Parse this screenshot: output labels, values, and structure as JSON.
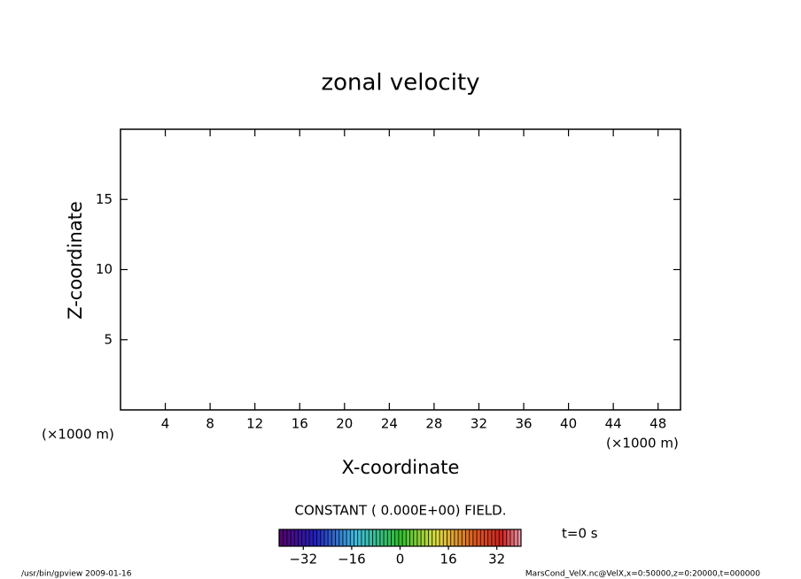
{
  "chart_data": {
    "type": "contour",
    "title": "zonal velocity",
    "xlabel": "X-coordinate",
    "ylabel": "Z-coordinate",
    "xunit_left": "(×1000 m)",
    "xunit_right": "(×1000 m)",
    "xlim": [
      0,
      50
    ],
    "xticks": [
      4,
      8,
      12,
      16,
      20,
      24,
      28,
      32,
      36,
      40,
      44,
      48
    ],
    "ylim": [
      0,
      20
    ],
    "yticks": [
      5,
      10,
      15
    ],
    "field_note": "CONSTANT ( 0.000E+00) FIELD.",
    "time_label": "t=0 s",
    "colorbar_lim": [
      -40,
      40
    ],
    "colorbar_ticks": [
      {
        "value": -32,
        "label": "−32"
      },
      {
        "value": -16,
        "label": "−16"
      },
      0,
      16,
      32
    ],
    "footer_left": "/usr/bin/gpview   2009-01-16",
    "footer_right": "MarsCond_VelX.nc@VelX,x=0:50000,z=0:20000,t=000000"
  }
}
